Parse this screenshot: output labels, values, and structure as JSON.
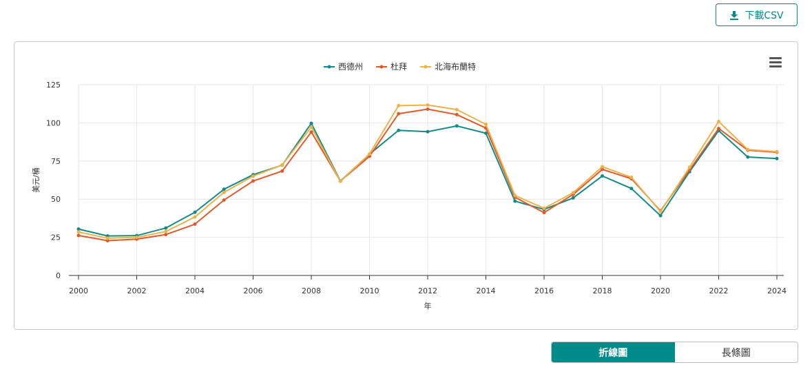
{
  "toolbar": {
    "download_label": "下載CSV"
  },
  "toggle": {
    "line_label": "折線圖",
    "bar_label": "長條圖"
  },
  "chart_data": {
    "type": "line",
    "xlabel": "年",
    "ylabel": "美元/桶",
    "ylim": [
      0,
      125
    ],
    "yticks": [
      0,
      25,
      50,
      75,
      100,
      125
    ],
    "xticks": [
      2000,
      2002,
      2004,
      2006,
      2008,
      2010,
      2012,
      2014,
      2016,
      2018,
      2020,
      2022,
      2024
    ],
    "grid": true,
    "legend_position": "top-center",
    "x": [
      2000,
      2001,
      2002,
      2003,
      2004,
      2005,
      2006,
      2007,
      2008,
      2009,
      2010,
      2011,
      2012,
      2013,
      2014,
      2015,
      2016,
      2017,
      2018,
      2019,
      2020,
      2021,
      2022,
      2023,
      2024
    ],
    "series": [
      {
        "name": "西德州",
        "color": "#138a8a",
        "values": [
          30.4,
          25.9,
          26.1,
          31.1,
          41.4,
          56.5,
          66.0,
          72.3,
          99.7,
          61.9,
          79.5,
          95.1,
          94.2,
          98.0,
          93.2,
          48.7,
          43.3,
          50.8,
          65.2,
          57.0,
          39.2,
          68.0,
          94.9,
          77.6,
          76.6
        ]
      },
      {
        "name": "杜拜",
        "color": "#e05a28",
        "values": [
          26.2,
          22.8,
          23.8,
          26.8,
          33.6,
          49.4,
          61.9,
          68.4,
          94.0,
          61.8,
          78.1,
          106.0,
          109.0,
          105.4,
          96.6,
          51.2,
          41.2,
          53.1,
          69.5,
          63.4,
          42.3,
          69.2,
          96.3,
          82.1,
          80.7
        ]
      },
      {
        "name": "北海布蘭特",
        "color": "#eab24a",
        "values": [
          28.5,
          24.4,
          25.0,
          28.8,
          38.3,
          54.5,
          65.1,
          72.4,
          97.3,
          61.7,
          79.6,
          111.3,
          111.7,
          108.7,
          99.0,
          52.4,
          44.0,
          54.2,
          71.3,
          64.3,
          41.8,
          70.9,
          100.9,
          82.5,
          81.1
        ]
      }
    ]
  }
}
